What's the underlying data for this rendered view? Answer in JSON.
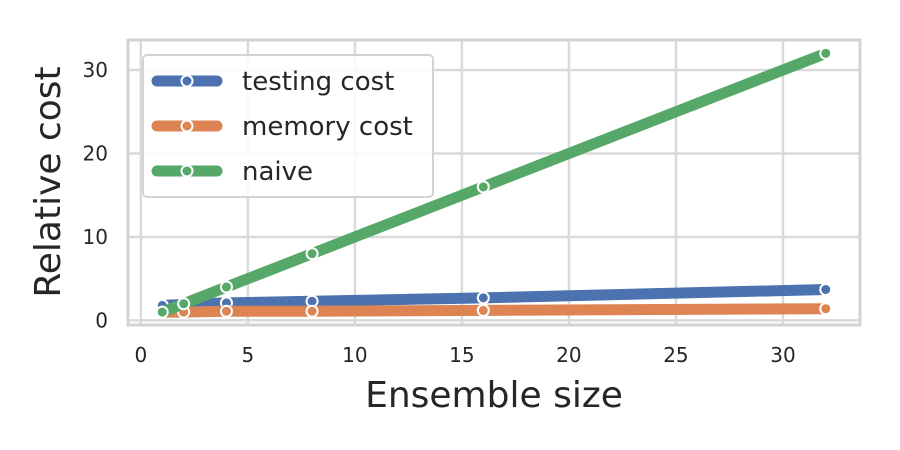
{
  "chart_data": {
    "type": "line",
    "xlabel": "Ensemble size",
    "ylabel": "Relative cost",
    "xlim": [
      -0.6,
      33.6
    ],
    "ylim": [
      -0.55,
      33.6
    ],
    "xticks": [
      0,
      5,
      10,
      15,
      20,
      25,
      30
    ],
    "yticks": [
      0,
      10,
      20,
      30
    ],
    "grid": true,
    "legend": "top-left",
    "x": [
      1,
      2,
      4,
      8,
      16,
      32
    ],
    "series": [
      {
        "name": "testing cost",
        "color": "#4c72b0",
        "values": [
          1.8,
          1.9,
          2.1,
          2.3,
          2.7,
          3.7
        ]
      },
      {
        "name": "memory cost",
        "color": "#dd8452",
        "values": [
          1.0,
          1.0,
          1.1,
          1.1,
          1.2,
          1.4
        ]
      },
      {
        "name": "naive",
        "color": "#55a868",
        "values": [
          1,
          2,
          4,
          8,
          16,
          32
        ]
      }
    ]
  }
}
